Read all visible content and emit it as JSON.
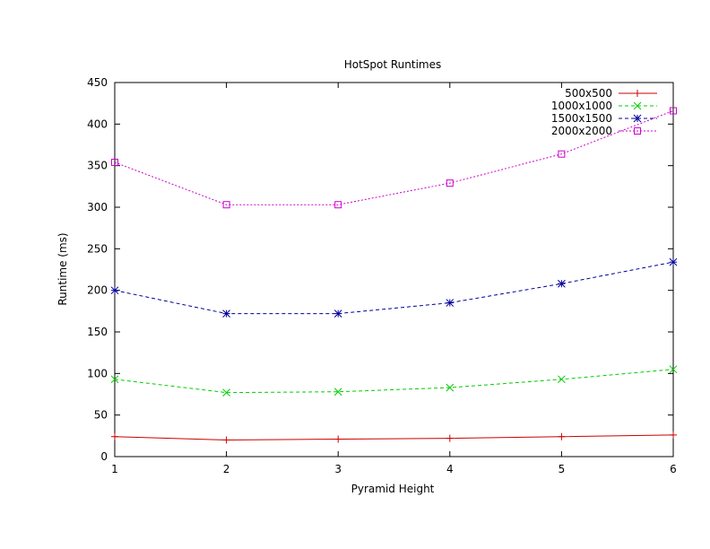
{
  "chart_data": {
    "type": "line",
    "title": "HotSpot Runtimes",
    "xlabel": "Pyramid Height",
    "ylabel": "Runtime (ms)",
    "xlim": [
      1,
      6
    ],
    "ylim": [
      0,
      450
    ],
    "x_ticks": [
      1,
      2,
      3,
      4,
      5,
      6
    ],
    "y_ticks": [
      0,
      50,
      100,
      150,
      200,
      250,
      300,
      350,
      400,
      450
    ],
    "grid": false,
    "legend_position": "top-right",
    "x": [
      1,
      2,
      3,
      4,
      5,
      6
    ],
    "series": [
      {
        "name": "500x500",
        "color": "#cc0000",
        "marker": "plus",
        "dash": "none",
        "values": [
          24,
          20,
          21,
          22,
          24,
          26
        ]
      },
      {
        "name": "1000x1000",
        "color": "#00cc00",
        "marker": "x",
        "dash": "dashed",
        "values": [
          93,
          77,
          78,
          83,
          93,
          105
        ]
      },
      {
        "name": "1500x1500",
        "color": "#000099",
        "marker": "star",
        "dash": "dashed",
        "values": [
          200,
          172,
          172,
          185,
          208,
          234
        ]
      },
      {
        "name": "2000x2000",
        "color": "#cc00cc",
        "marker": "square",
        "dash": "dotted",
        "values": [
          354,
          303,
          303,
          329,
          364,
          416
        ]
      }
    ]
  }
}
